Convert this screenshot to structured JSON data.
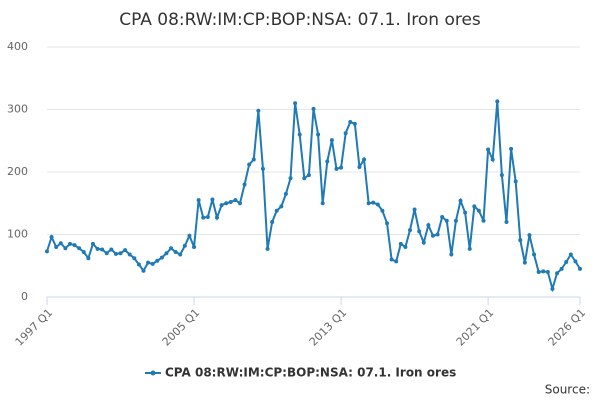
{
  "chart_data": {
    "type": "line",
    "title": "CPA 08:RW:IM:CP:BOP:NSA: 07.1. Iron ores",
    "source_label": "Source:",
    "categories": [
      "1997 Q1",
      null,
      null,
      null,
      null,
      null,
      null,
      null,
      null,
      null,
      null,
      null,
      null,
      null,
      null,
      null,
      null,
      null,
      null,
      null,
      null,
      null,
      null,
      null,
      null,
      null,
      null,
      null,
      null,
      null,
      null,
      null,
      "2005 Q1",
      null,
      null,
      null,
      null,
      null,
      null,
      null,
      null,
      null,
      null,
      null,
      null,
      null,
      null,
      null,
      null,
      null,
      null,
      null,
      null,
      null,
      null,
      null,
      null,
      null,
      null,
      null,
      null,
      null,
      null,
      null,
      "2013 Q1",
      null,
      null,
      null,
      null,
      null,
      null,
      null,
      null,
      null,
      null,
      null,
      null,
      null,
      null,
      null,
      null,
      null,
      null,
      null,
      null,
      null,
      null,
      null,
      null,
      null,
      null,
      null,
      null,
      null,
      null,
      null,
      "2021 Q1",
      null,
      null,
      null,
      null,
      null,
      null,
      null,
      null,
      null,
      null,
      null,
      null,
      null,
      null,
      null,
      null,
      null,
      null,
      null,
      "2026 Q1"
    ],
    "series": [
      {
        "name": "CPA 08:RW:IM:CP:BOP:NSA: 07.1. Iron ores",
        "color": "#1f7ab5",
        "values": [
          73,
          96,
          80,
          86,
          78,
          85,
          83,
          78,
          72,
          62,
          85,
          77,
          76,
          70,
          76,
          69,
          70,
          75,
          68,
          62,
          52,
          42,
          55,
          53,
          58,
          63,
          70,
          78,
          72,
          68,
          82,
          98,
          80,
          155,
          127,
          128,
          156,
          127,
          147,
          150,
          152,
          155,
          150,
          180,
          212,
          220,
          298,
          205,
          77,
          120,
          138,
          145,
          165,
          190,
          310,
          260,
          190,
          195,
          301,
          260,
          150,
          217,
          251,
          205,
          207,
          262,
          280,
          277,
          208,
          220,
          150,
          151,
          148,
          138,
          118,
          60,
          57,
          85,
          80,
          107,
          140,
          105,
          87,
          115,
          98,
          100,
          128,
          122,
          68,
          122,
          154,
          135,
          77,
          145,
          138,
          122,
          236,
          220,
          313,
          195,
          120,
          237,
          185,
          91,
          55,
          99,
          68,
          40,
          41,
          40,
          13,
          38,
          45,
          56,
          68,
          57,
          45
        ]
      }
    ],
    "ylim": [
      0,
      400
    ],
    "yticks": [
      0,
      100,
      200,
      300,
      400
    ],
    "grid": true
  }
}
